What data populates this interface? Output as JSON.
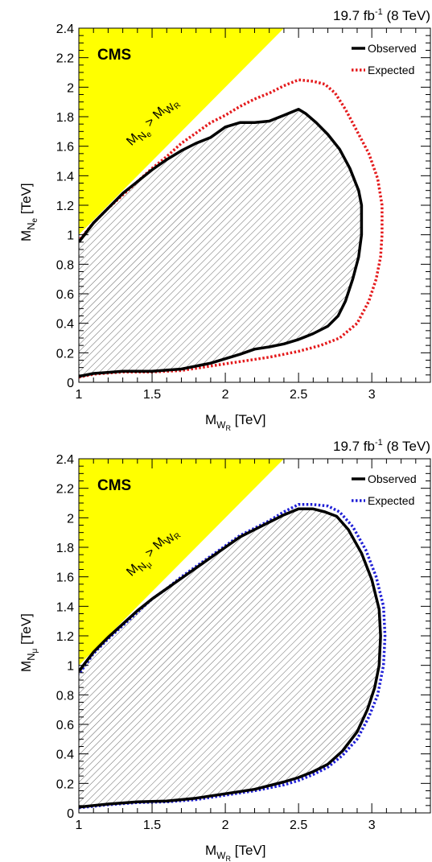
{
  "chart_data": [
    {
      "type": "area",
      "lumi_label": "19.7 fb",
      "lumi_exp": "-1",
      "lumi_energy": "(8 TeV)",
      "experiment": "CMS",
      "xlabel_main": "M",
      "xlabel_sub": "W",
      "xlabel_subsub": "R",
      "xlabel_unit": " [TeV]",
      "ylabel_main": "M",
      "ylabel_sub": "N",
      "ylabel_subsub": "e",
      "ylabel_unit": " [TeV]",
      "annotation_lhs": "M",
      "annotation_lhs_sub": "N",
      "annotation_lhs_subsub": "e",
      "annotation_op": " > M",
      "annotation_rhs_sub": "W",
      "annotation_rhs_subsub": "R",
      "xlim": [
        1.0,
        3.4
      ],
      "ylim": [
        0.0,
        2.4
      ],
      "x_ticks": [
        "1",
        "1.5",
        "2",
        "2.5",
        "3"
      ],
      "y_ticks": [
        "0",
        "0.2",
        "0.4",
        "0.6",
        "0.8",
        "1",
        "1.2",
        "1.4",
        "1.6",
        "1.8",
        "2",
        "2.2",
        "2.4"
      ],
      "legend": [
        "Observed",
        "Expected"
      ],
      "legend_position": "top-right",
      "colors": {
        "observed": "#000000",
        "expected": "#e41a1c",
        "excluded_kinematic": "#ffff00",
        "hatch": "#555555"
      },
      "series": [
        {
          "name": "Observed",
          "points": [
            [
              1.0,
              0.04
            ],
            [
              1.1,
              0.06
            ],
            [
              1.3,
              0.075
            ],
            [
              1.5,
              0.075
            ],
            [
              1.7,
              0.09
            ],
            [
              1.9,
              0.13
            ],
            [
              2.0,
              0.16
            ],
            [
              2.1,
              0.19
            ],
            [
              2.2,
              0.225
            ],
            [
              2.3,
              0.24
            ],
            [
              2.4,
              0.26
            ],
            [
              2.5,
              0.29
            ],
            [
              2.6,
              0.33
            ],
            [
              2.7,
              0.38
            ],
            [
              2.77,
              0.45
            ],
            [
              2.82,
              0.55
            ],
            [
              2.87,
              0.7
            ],
            [
              2.91,
              0.85
            ],
            [
              2.93,
              1.0
            ],
            [
              2.93,
              1.2
            ],
            [
              2.91,
              1.3
            ],
            [
              2.85,
              1.45
            ],
            [
              2.78,
              1.58
            ],
            [
              2.7,
              1.68
            ],
            [
              2.62,
              1.76
            ],
            [
              2.55,
              1.82
            ],
            [
              2.5,
              1.85
            ],
            [
              2.4,
              1.81
            ],
            [
              2.3,
              1.77
            ],
            [
              2.2,
              1.76
            ],
            [
              2.1,
              1.76
            ],
            [
              2.0,
              1.73
            ],
            [
              1.9,
              1.66
            ],
            [
              1.8,
              1.62
            ],
            [
              1.7,
              1.57
            ],
            [
              1.6,
              1.51
            ],
            [
              1.5,
              1.44
            ],
            [
              1.4,
              1.36
            ],
            [
              1.3,
              1.28
            ],
            [
              1.2,
              1.18
            ],
            [
              1.1,
              1.08
            ],
            [
              1.0,
              0.95
            ]
          ]
        },
        {
          "name": "Expected",
          "points": [
            [
              1.0,
              0.035
            ],
            [
              1.1,
              0.055
            ],
            [
              1.3,
              0.07
            ],
            [
              1.5,
              0.07
            ],
            [
              1.7,
              0.08
            ],
            [
              1.9,
              0.11
            ],
            [
              2.1,
              0.14
            ],
            [
              2.3,
              0.17
            ],
            [
              2.5,
              0.21
            ],
            [
              2.65,
              0.25
            ],
            [
              2.78,
              0.3
            ],
            [
              2.9,
              0.4
            ],
            [
              2.98,
              0.55
            ],
            [
              3.03,
              0.7
            ],
            [
              3.06,
              0.85
            ],
            [
              3.07,
              1.0
            ],
            [
              3.07,
              1.2
            ],
            [
              3.04,
              1.38
            ],
            [
              2.98,
              1.55
            ],
            [
              2.9,
              1.7
            ],
            [
              2.82,
              1.85
            ],
            [
              2.75,
              1.96
            ],
            [
              2.68,
              2.02
            ],
            [
              2.6,
              2.04
            ],
            [
              2.5,
              2.05
            ],
            [
              2.4,
              2.01
            ],
            [
              2.3,
              1.96
            ],
            [
              2.2,
              1.92
            ],
            [
              2.1,
              1.87
            ],
            [
              2.0,
              1.81
            ],
            [
              1.9,
              1.76
            ],
            [
              1.8,
              1.69
            ],
            [
              1.7,
              1.62
            ],
            [
              1.6,
              1.53
            ],
            [
              1.5,
              1.45
            ],
            [
              1.4,
              1.36
            ],
            [
              1.3,
              1.27
            ],
            [
              1.2,
              1.18
            ],
            [
              1.1,
              1.08
            ],
            [
              1.0,
              0.96
            ]
          ]
        }
      ]
    },
    {
      "type": "area",
      "lumi_label": "19.7 fb",
      "lumi_exp": "-1",
      "lumi_energy": "(8 TeV)",
      "experiment": "CMS",
      "xlabel_main": "M",
      "xlabel_sub": "W",
      "xlabel_subsub": "R",
      "xlabel_unit": " [TeV]",
      "ylabel_main": "M",
      "ylabel_sub": "N",
      "ylabel_subsub": "μ",
      "ylabel_unit": " [TeV]",
      "annotation_lhs": "M",
      "annotation_lhs_sub": "N",
      "annotation_lhs_subsub": "μ",
      "annotation_op": " > M",
      "annotation_rhs_sub": "W",
      "annotation_rhs_subsub": "R",
      "xlim": [
        1.0,
        3.4
      ],
      "ylim": [
        0.0,
        2.4
      ],
      "x_ticks": [
        "1",
        "1.5",
        "2",
        "2.5",
        "3"
      ],
      "y_ticks": [
        "0",
        "0.2",
        "0.4",
        "0.6",
        "0.8",
        "1",
        "1.2",
        "1.4",
        "1.6",
        "1.8",
        "2",
        "2.2",
        "2.4"
      ],
      "legend": [
        "Observed",
        "Expected"
      ],
      "legend_position": "top-right",
      "colors": {
        "observed": "#000000",
        "expected": "#1f1fd6",
        "excluded_kinematic": "#ffff00",
        "hatch": "#555555"
      },
      "series": [
        {
          "name": "Observed",
          "points": [
            [
              1.0,
              0.04
            ],
            [
              1.2,
              0.06
            ],
            [
              1.4,
              0.075
            ],
            [
              1.6,
              0.08
            ],
            [
              1.8,
              0.1
            ],
            [
              2.0,
              0.13
            ],
            [
              2.2,
              0.16
            ],
            [
              2.4,
              0.21
            ],
            [
              2.5,
              0.24
            ],
            [
              2.6,
              0.28
            ],
            [
              2.7,
              0.33
            ],
            [
              2.8,
              0.42
            ],
            [
              2.9,
              0.55
            ],
            [
              2.97,
              0.7
            ],
            [
              3.02,
              0.85
            ],
            [
              3.05,
              1.0
            ],
            [
              3.06,
              1.2
            ],
            [
              3.05,
              1.38
            ],
            [
              3.0,
              1.58
            ],
            [
              2.93,
              1.76
            ],
            [
              2.84,
              1.92
            ],
            [
              2.76,
              2.01
            ],
            [
              2.68,
              2.04
            ],
            [
              2.6,
              2.06
            ],
            [
              2.5,
              2.06
            ],
            [
              2.4,
              2.02
            ],
            [
              2.3,
              1.97
            ],
            [
              2.2,
              1.92
            ],
            [
              2.1,
              1.87
            ],
            [
              2.0,
              1.8
            ],
            [
              1.9,
              1.73
            ],
            [
              1.8,
              1.66
            ],
            [
              1.7,
              1.59
            ],
            [
              1.6,
              1.52
            ],
            [
              1.5,
              1.45
            ],
            [
              1.4,
              1.37
            ],
            [
              1.3,
              1.28
            ],
            [
              1.2,
              1.19
            ],
            [
              1.1,
              1.09
            ],
            [
              1.0,
              0.96
            ]
          ]
        },
        {
          "name": "Expected",
          "points": [
            [
              1.0,
              0.035
            ],
            [
              1.2,
              0.055
            ],
            [
              1.4,
              0.07
            ],
            [
              1.6,
              0.075
            ],
            [
              1.8,
              0.09
            ],
            [
              2.0,
              0.12
            ],
            [
              2.2,
              0.15
            ],
            [
              2.4,
              0.19
            ],
            [
              2.5,
              0.22
            ],
            [
              2.6,
              0.26
            ],
            [
              2.7,
              0.31
            ],
            [
              2.8,
              0.39
            ],
            [
              2.9,
              0.5
            ],
            [
              2.98,
              0.65
            ],
            [
              3.04,
              0.8
            ],
            [
              3.08,
              1.0
            ],
            [
              3.09,
              1.2
            ],
            [
              3.08,
              1.4
            ],
            [
              3.03,
              1.6
            ],
            [
              2.96,
              1.78
            ],
            [
              2.87,
              1.94
            ],
            [
              2.78,
              2.04
            ],
            [
              2.7,
              2.08
            ],
            [
              2.6,
              2.09
            ],
            [
              2.5,
              2.09
            ],
            [
              2.4,
              2.04
            ],
            [
              2.3,
              1.98
            ],
            [
              2.2,
              1.93
            ],
            [
              2.1,
              1.88
            ],
            [
              2.0,
              1.81
            ],
            [
              1.9,
              1.74
            ],
            [
              1.8,
              1.67
            ],
            [
              1.7,
              1.6
            ],
            [
              1.6,
              1.52
            ],
            [
              1.5,
              1.45
            ],
            [
              1.4,
              1.36
            ],
            [
              1.3,
              1.27
            ],
            [
              1.2,
              1.18
            ],
            [
              1.1,
              1.08
            ],
            [
              1.0,
              0.94
            ]
          ]
        }
      ]
    }
  ]
}
